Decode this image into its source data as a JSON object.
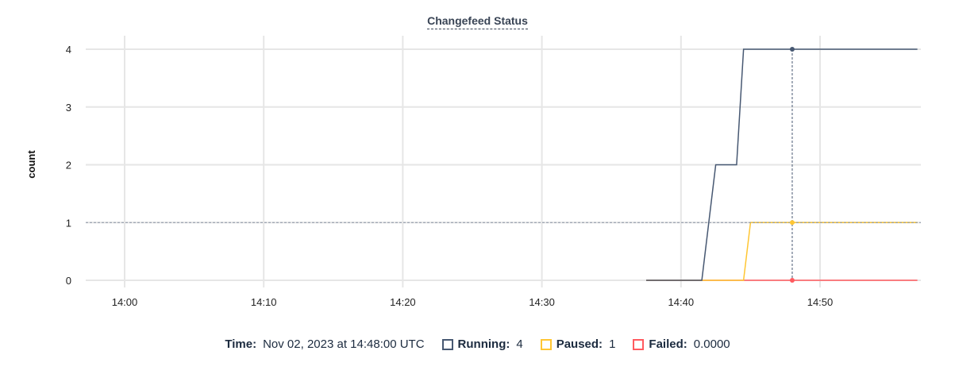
{
  "chart_data": {
    "type": "line",
    "title": "Changefeed Status",
    "ylabel": "count",
    "xlabel": "",
    "x_ticks": [
      "14:00",
      "14:10",
      "14:20",
      "14:30",
      "14:40",
      "14:50"
    ],
    "y_ticks": [
      0,
      1,
      2,
      3,
      4
    ],
    "xlim": [
      "13:57:30",
      "14:57:00"
    ],
    "ylim": [
      0,
      4
    ],
    "grid": true,
    "series": [
      {
        "name": "Running",
        "color": "#475872",
        "x": [
          "14:37:30",
          "14:41:30",
          "14:42:30",
          "14:44:00",
          "14:44:30",
          "14:57:00"
        ],
        "y": [
          0,
          0,
          2,
          2,
          4,
          4
        ]
      },
      {
        "name": "Paused",
        "color": "#ffc633",
        "x": [
          "14:37:30",
          "14:44:30",
          "14:45:00",
          "14:57:00"
        ],
        "y": [
          0,
          0,
          1,
          1
        ]
      },
      {
        "name": "Failed",
        "color": "#ff5a5f",
        "x": [
          "14:37:30",
          "14:57:00"
        ],
        "y": [
          0,
          0
        ]
      }
    ],
    "hover": {
      "time": "14:48:00",
      "reference_y": 1
    }
  },
  "legend": {
    "time_label": "Time:",
    "time_value": "Nov 02, 2023 at 14:48:00 UTC",
    "items": [
      {
        "label": "Running:",
        "value": "4",
        "color": "#475872"
      },
      {
        "label": "Paused:",
        "value": "1",
        "color": "#ffc633"
      },
      {
        "label": "Failed:",
        "value": "0.0000",
        "color": "#ff5a5f"
      }
    ]
  }
}
